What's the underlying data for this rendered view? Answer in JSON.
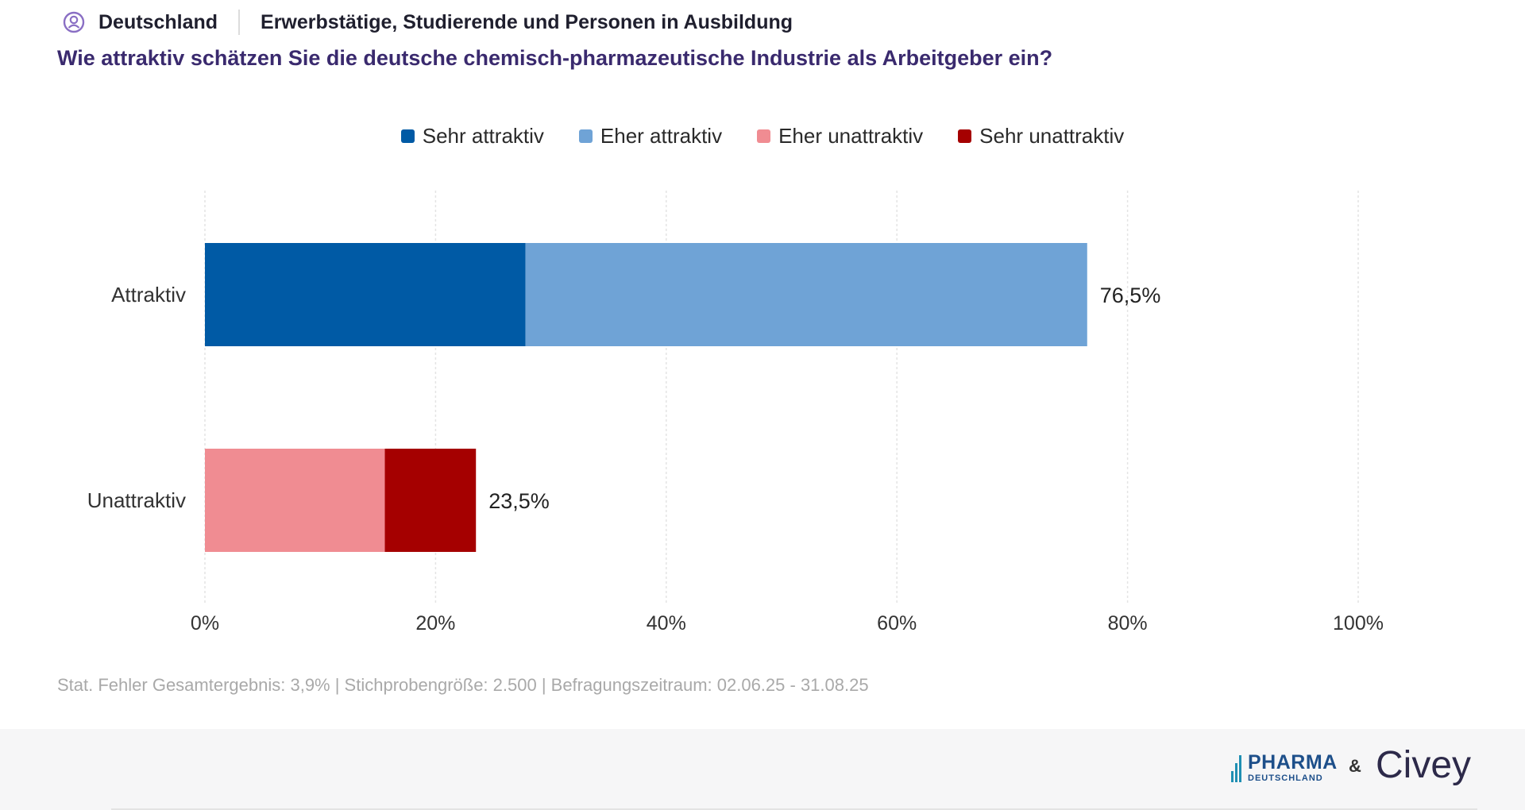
{
  "header": {
    "region": "Deutschland",
    "target_group": "Erwerbstätige, Studierende und Personen in Ausbildung",
    "question": "Wie attraktiv schätzen Sie die deutsche chemisch-pharmazeutische Industrie als Arbeitgeber ein?",
    "icon": "person-search-icon"
  },
  "colors": {
    "sehr_attraktiv": "#005aa5",
    "eher_attraktiv": "#6fa3d6",
    "eher_unattraktiv": "#f08c92",
    "sehr_unattraktiv": "#a50000",
    "question_text": "#3a2a6e"
  },
  "chart_data": {
    "type": "bar",
    "orientation": "horizontal",
    "stacked": true,
    "categories": [
      "Attraktiv",
      "Unattraktiv"
    ],
    "series": [
      {
        "name": "Sehr attraktiv",
        "values": [
          27.8,
          0
        ],
        "color": "#005aa5"
      },
      {
        "name": "Eher attraktiv",
        "values": [
          48.7,
          0
        ],
        "color": "#6fa3d6"
      },
      {
        "name": "Eher unattraktiv",
        "values": [
          0,
          15.6
        ],
        "color": "#f08c92"
      },
      {
        "name": "Sehr unattraktiv",
        "values": [
          0,
          7.9
        ],
        "color": "#a50000"
      }
    ],
    "totals": [
      "76,5%",
      "23,5%"
    ],
    "xlim": [
      0,
      100
    ],
    "xticks": [
      "0%",
      "20%",
      "40%",
      "60%",
      "80%",
      "100%"
    ],
    "grid": true,
    "legend_position": "top-center"
  },
  "footnote": "Stat. Fehler Gesamtergebnis: 3,9% | Stichprobengröße: 2.500 | Befragungszeitraum: 02.06.25 - 31.08.25",
  "footer": {
    "logo_pharma_main": "PHARMA",
    "logo_pharma_sub": "DEUTSCHLAND",
    "ampersand": "&",
    "logo_civey": "Civey"
  }
}
